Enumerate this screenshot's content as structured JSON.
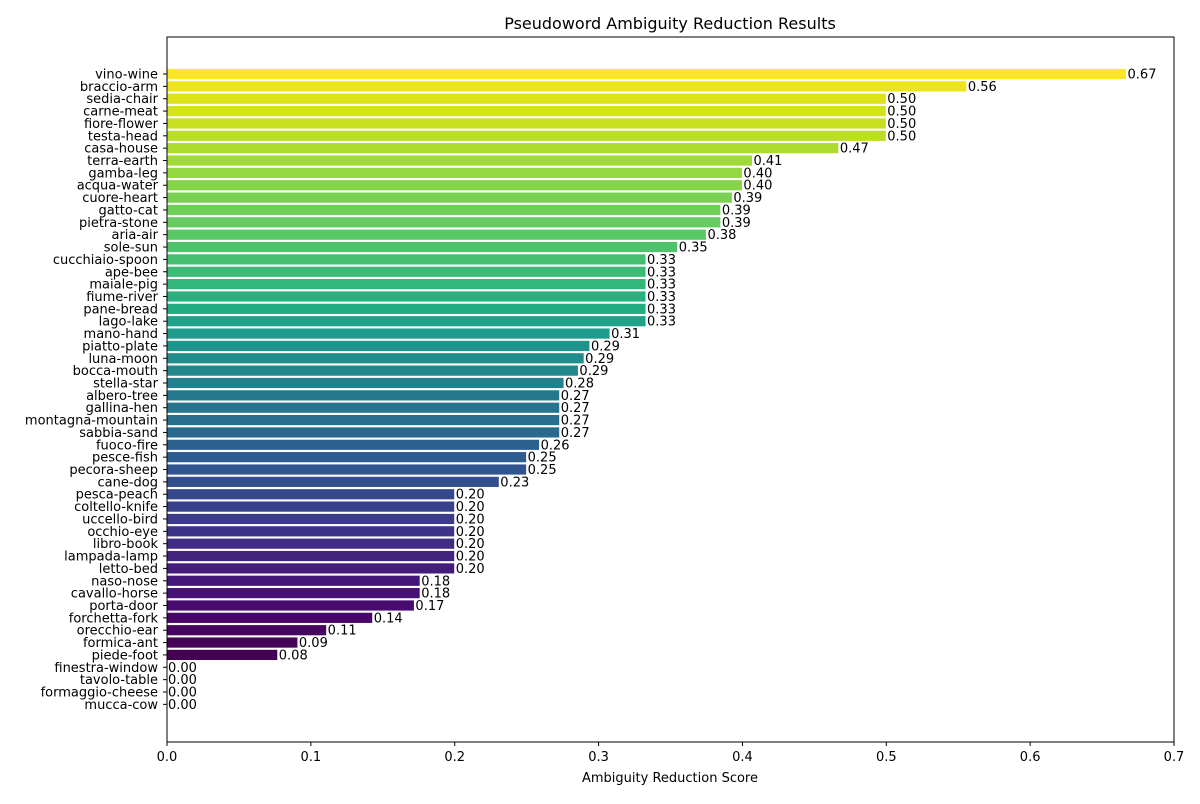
{
  "chart_data": {
    "type": "bar",
    "orientation": "horizontal",
    "title": "Pseudoword Ambiguity Reduction Results",
    "xlabel": "Ambiguity Reduction Score",
    "ylabel": "",
    "xlim": [
      0.0,
      0.7
    ],
    "x_ticks": [
      0.0,
      0.1,
      0.2,
      0.3,
      0.4,
      0.5,
      0.6,
      0.7
    ],
    "x_tick_labels": [
      "0.0",
      "0.1",
      "0.2",
      "0.3",
      "0.4",
      "0.5",
      "0.6",
      "0.7"
    ],
    "grid": false,
    "colormap": "viridis",
    "bar_edge_color": "#ffffff",
    "categories": [
      "vino-wine",
      "braccio-arm",
      "sedia-chair",
      "carne-meat",
      "fiore-flower",
      "testa-head",
      "casa-house",
      "terra-earth",
      "gamba-leg",
      "acqua-water",
      "cuore-heart",
      "gatto-cat",
      "pietra-stone",
      "aria-air",
      "sole-sun",
      "cucchiaio-spoon",
      "ape-bee",
      "maiale-pig",
      "fiume-river",
      "pane-bread",
      "lago-lake",
      "mano-hand",
      "piatto-plate",
      "luna-moon",
      "bocca-mouth",
      "stella-star",
      "albero-tree",
      "gallina-hen",
      "montagna-mountain",
      "sabbia-sand",
      "fuoco-fire",
      "pesce-fish",
      "pecora-sheep",
      "cane-dog",
      "pesca-peach",
      "coltello-knife",
      "uccello-bird",
      "occhio-eye",
      "libro-book",
      "lampada-lamp",
      "letto-bed",
      "naso-nose",
      "cavallo-horse",
      "porta-door",
      "forchetta-fork",
      "orecchio-ear",
      "formica-ant",
      "piede-foot",
      "finestra-window",
      "tavolo-table",
      "formaggio-cheese",
      "mucca-cow"
    ],
    "values": [
      0.667,
      0.556,
      0.5,
      0.5,
      0.5,
      0.5,
      0.467,
      0.407,
      0.4,
      0.4,
      0.393,
      0.385,
      0.385,
      0.375,
      0.355,
      0.333,
      0.333,
      0.333,
      0.333,
      0.333,
      0.333,
      0.308,
      0.294,
      0.29,
      0.286,
      0.276,
      0.273,
      0.273,
      0.273,
      0.273,
      0.259,
      0.25,
      0.25,
      0.231,
      0.2,
      0.2,
      0.2,
      0.2,
      0.2,
      0.2,
      0.2,
      0.176,
      0.176,
      0.172,
      0.143,
      0.111,
      0.091,
      0.077,
      0.0,
      0.0,
      0.0,
      0.0
    ],
    "value_labels": [
      "0.67",
      "0.56",
      "0.50",
      "0.50",
      "0.50",
      "0.50",
      "0.47",
      "0.41",
      "0.40",
      "0.40",
      "0.39",
      "0.39",
      "0.39",
      "0.38",
      "0.35",
      "0.33",
      "0.33",
      "0.33",
      "0.33",
      "0.33",
      "0.33",
      "0.31",
      "0.29",
      "0.29",
      "0.29",
      "0.28",
      "0.27",
      "0.27",
      "0.27",
      "0.27",
      "0.26",
      "0.25",
      "0.25",
      "0.23",
      "0.20",
      "0.20",
      "0.20",
      "0.20",
      "0.20",
      "0.20",
      "0.20",
      "0.18",
      "0.18",
      "0.17",
      "0.14",
      "0.11",
      "0.09",
      "0.08",
      "0.00",
      "0.00",
      "0.00",
      "0.00"
    ],
    "bar_colors": [
      "#fde725",
      "#ece51b",
      "#dde318",
      "#d2e21b",
      "#c6e021",
      "#bade28",
      "#addc30",
      "#a0da39",
      "#93d741",
      "#86d549",
      "#7ad151",
      "#6ece58",
      "#63cb5f",
      "#58c765",
      "#4ec36b",
      "#44bf70",
      "#3bbb75",
      "#32b67a",
      "#2ab07f",
      "#23ab82",
      "#1fa287",
      "#1e9b8a",
      "#1f948c",
      "#208d8c",
      "#21878d",
      "#22818e",
      "#24798e",
      "#26748e",
      "#286e8e",
      "#2a688e",
      "#2c618e",
      "#2e5c8e",
      "#31558e",
      "#33508d",
      "#36488d",
      "#38418c",
      "#3b3a8b",
      "#3d3388",
      "#402c85",
      "#42247f",
      "#441d7a",
      "#45167a",
      "#461075",
      "#470b6f",
      "#470668",
      "#46055f",
      "#45045a",
      "#440154",
      "#440154",
      "#440154",
      "#440154",
      "#440154"
    ]
  }
}
